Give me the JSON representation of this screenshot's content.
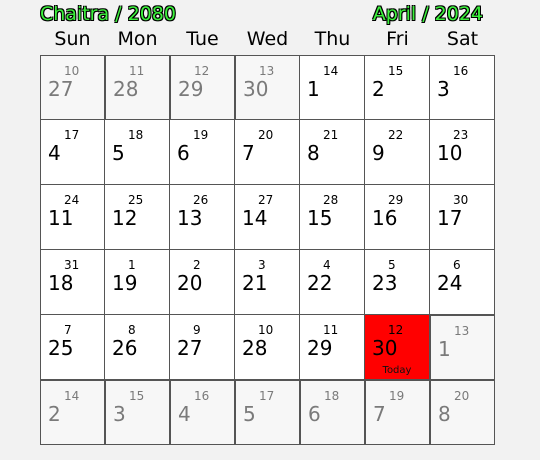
{
  "header": {
    "bs_month": "Chaitra / 2080",
    "ad_month": "April / 2024"
  },
  "weekdays": [
    "Sun",
    "Mon",
    "Tue",
    "Wed",
    "Thu",
    "Fri",
    "Sat"
  ],
  "colors": {
    "today_bg": "#ff0000",
    "header_text": "#3bf03b",
    "outside_text": "#7a7a7a"
  },
  "days": [
    {
      "bs": "10",
      "ad": "27",
      "outside": true
    },
    {
      "bs": "11",
      "ad": "28",
      "outside": true
    },
    {
      "bs": "12",
      "ad": "29",
      "outside": true
    },
    {
      "bs": "13",
      "ad": "30",
      "outside": true
    },
    {
      "bs": "14",
      "ad": "1"
    },
    {
      "bs": "15",
      "ad": "2"
    },
    {
      "bs": "16",
      "ad": "3"
    },
    {
      "bs": "17",
      "ad": "4"
    },
    {
      "bs": "18",
      "ad": "5"
    },
    {
      "bs": "19",
      "ad": "6"
    },
    {
      "bs": "20",
      "ad": "7"
    },
    {
      "bs": "21",
      "ad": "8"
    },
    {
      "bs": "22",
      "ad": "9"
    },
    {
      "bs": "23",
      "ad": "10"
    },
    {
      "bs": "24",
      "ad": "11"
    },
    {
      "bs": "25",
      "ad": "12"
    },
    {
      "bs": "26",
      "ad": "13"
    },
    {
      "bs": "27",
      "ad": "14"
    },
    {
      "bs": "28",
      "ad": "15"
    },
    {
      "bs": "29",
      "ad": "16"
    },
    {
      "bs": "30",
      "ad": "17"
    },
    {
      "bs": "31",
      "ad": "18"
    },
    {
      "bs": "1",
      "ad": "19"
    },
    {
      "bs": "2",
      "ad": "20"
    },
    {
      "bs": "3",
      "ad": "21"
    },
    {
      "bs": "4",
      "ad": "22"
    },
    {
      "bs": "5",
      "ad": "23"
    },
    {
      "bs": "6",
      "ad": "24"
    },
    {
      "bs": "7",
      "ad": "25"
    },
    {
      "bs": "8",
      "ad": "26"
    },
    {
      "bs": "9",
      "ad": "27"
    },
    {
      "bs": "10",
      "ad": "28"
    },
    {
      "bs": "11",
      "ad": "29"
    },
    {
      "bs": "12",
      "ad": "30",
      "today": true,
      "label": "Today"
    },
    {
      "bs": "13",
      "ad": "1",
      "outside": true
    },
    {
      "bs": "14",
      "ad": "2",
      "outside": true
    },
    {
      "bs": "15",
      "ad": "3",
      "outside": true
    },
    {
      "bs": "16",
      "ad": "4",
      "outside": true
    },
    {
      "bs": "17",
      "ad": "5",
      "outside": true
    },
    {
      "bs": "18",
      "ad": "6",
      "outside": true
    },
    {
      "bs": "19",
      "ad": "7",
      "outside": true
    },
    {
      "bs": "20",
      "ad": "8",
      "outside": true
    }
  ]
}
